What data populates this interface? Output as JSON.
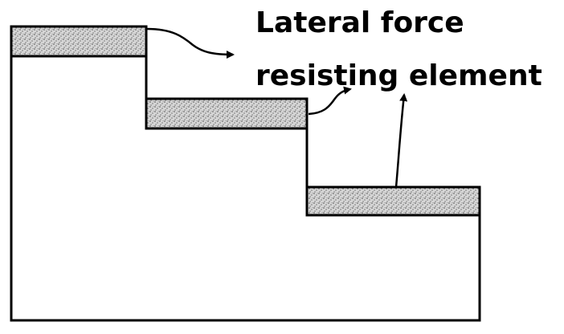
{
  "label": {
    "line1": "Lateral force",
    "line2": "resisting element"
  },
  "colors": {
    "stroke": "#000000",
    "background": "#ffffff",
    "hatch_base": "#d9d9d9",
    "hatch_dots": "#4a4a4a"
  }
}
